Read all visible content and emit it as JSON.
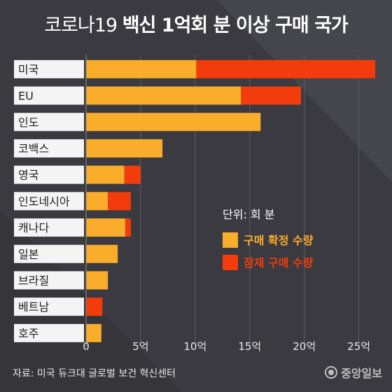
{
  "title": {
    "light": "코로나19",
    "bold": "백신 1억회 분 이상 구매 국가"
  },
  "source": "자료: 미국 듀크대 글로벌 보건 혁신센터",
  "logo": "중앙일보",
  "colors": {
    "confirmed": "#f9ad2a",
    "potential": "#f23c0c",
    "background": "#3a3a40",
    "label_bg": "#f4f4f4"
  },
  "chart_data": {
    "type": "bar",
    "stacked": true,
    "orientation": "horizontal",
    "categories": [
      "미국",
      "EU",
      "인도",
      "코백스",
      "영국",
      "인도네시아",
      "캐나다",
      "일본",
      "브라질",
      "베트남",
      "호주"
    ],
    "series": [
      {
        "name": "구매 확정 수량",
        "values": [
          10.1,
          14.2,
          16.0,
          7.0,
          3.5,
          2.0,
          3.6,
          2.9,
          2.0,
          0,
          1.4
        ]
      },
      {
        "name": "잠재 구매 수량",
        "values": [
          16.4,
          5.5,
          0,
          0,
          1.5,
          2.1,
          0.5,
          0,
          0,
          1.5,
          0
        ]
      }
    ],
    "xlim": [
      0,
      26.5
    ],
    "x_ticks": [
      "0",
      "5억",
      "10억",
      "15억",
      "20억",
      "25억"
    ],
    "x_tick_values": [
      0,
      5,
      10,
      15,
      20,
      25
    ],
    "grid": true,
    "legend": {
      "position": "right",
      "unit": "단위: 회 분",
      "entries": [
        "구매 확정 수량",
        "잠재 구매 수량"
      ]
    }
  }
}
